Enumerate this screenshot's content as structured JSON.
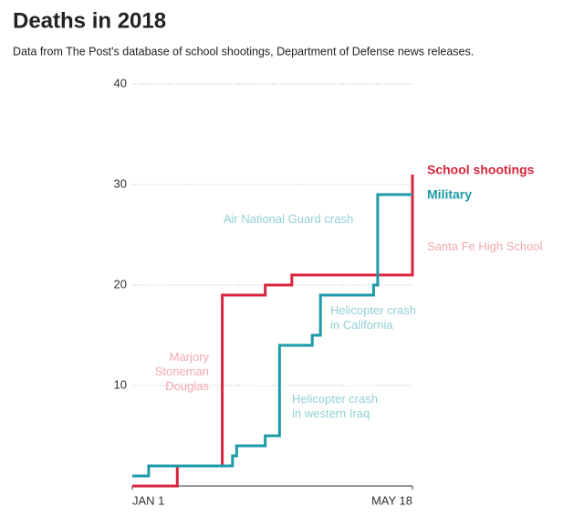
{
  "chart_data": {
    "type": "line",
    "step": true,
    "title": "Deaths in 2018",
    "subtitle": "Data from The Post's database of school shootings, Department of Defense news releases.",
    "xlim": [
      0,
      137
    ],
    "xticks": [
      {
        "value": 0,
        "label": "JAN 1"
      },
      {
        "value": 137,
        "label": "MAY 18"
      }
    ],
    "ylim": [
      0,
      40
    ],
    "yticks": [
      10,
      20,
      30,
      40
    ],
    "grid": true,
    "series": [
      {
        "name": "School shootings",
        "color": "#d7263d",
        "x": [
          0,
          22,
          44,
          65,
          78,
          137
        ],
        "values": [
          0,
          2,
          19,
          20,
          21,
          31
        ]
      },
      {
        "name": "Military",
        "color": "#1c9aa8",
        "x": [
          0,
          8,
          49,
          51,
          65,
          72,
          88,
          92,
          118,
          120,
          137
        ],
        "values": [
          1,
          2,
          3,
          4,
          5,
          14,
          15,
          19,
          20,
          29,
          29
        ]
      }
    ],
    "annotations": [
      {
        "text": [
          "Air National Guard crash"
        ],
        "color": "#93d0d7"
      },
      {
        "text": [
          "Santa Fe High School"
        ],
        "color": "#f3a9ae"
      },
      {
        "text": [
          "Helicopter crash",
          "in California"
        ],
        "color": "#93d0d7"
      },
      {
        "text": [
          "Marjory",
          "Stoneman",
          "Douglas"
        ],
        "color": "#f3a9ae"
      },
      {
        "text": [
          "Helicopter crash",
          "in western Iraq"
        ],
        "color": "#93d0d7"
      }
    ]
  }
}
